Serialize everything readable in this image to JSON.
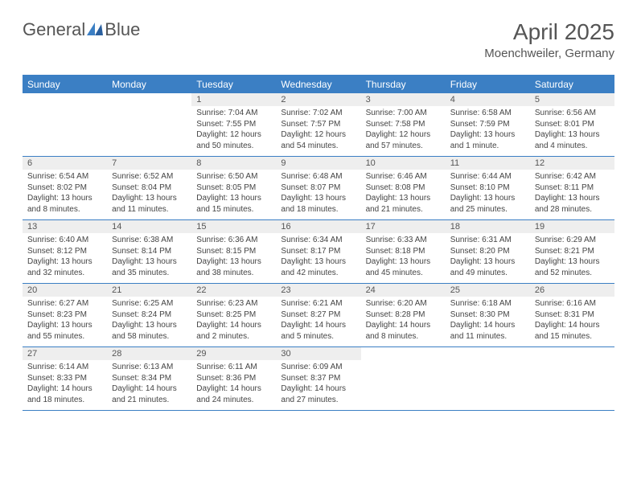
{
  "logo": {
    "text1": "General",
    "text2": "Blue"
  },
  "title": "April 2025",
  "subtitle": "Moenchweiler, Germany",
  "colors": {
    "header_bg": "#3b7fc4",
    "header_text": "#ffffff",
    "daynum_bg": "#eeeeee",
    "border": "#3b7fc4",
    "text": "#444444",
    "title": "#555555"
  },
  "day_names": [
    "Sunday",
    "Monday",
    "Tuesday",
    "Wednesday",
    "Thursday",
    "Friday",
    "Saturday"
  ],
  "weeks": [
    [
      null,
      null,
      {
        "n": "1",
        "sunrise": "7:04 AM",
        "sunset": "7:55 PM",
        "daylight": "12 hours and 50 minutes."
      },
      {
        "n": "2",
        "sunrise": "7:02 AM",
        "sunset": "7:57 PM",
        "daylight": "12 hours and 54 minutes."
      },
      {
        "n": "3",
        "sunrise": "7:00 AM",
        "sunset": "7:58 PM",
        "daylight": "12 hours and 57 minutes."
      },
      {
        "n": "4",
        "sunrise": "6:58 AM",
        "sunset": "7:59 PM",
        "daylight": "13 hours and 1 minute."
      },
      {
        "n": "5",
        "sunrise": "6:56 AM",
        "sunset": "8:01 PM",
        "daylight": "13 hours and 4 minutes."
      }
    ],
    [
      {
        "n": "6",
        "sunrise": "6:54 AM",
        "sunset": "8:02 PM",
        "daylight": "13 hours and 8 minutes."
      },
      {
        "n": "7",
        "sunrise": "6:52 AM",
        "sunset": "8:04 PM",
        "daylight": "13 hours and 11 minutes."
      },
      {
        "n": "8",
        "sunrise": "6:50 AM",
        "sunset": "8:05 PM",
        "daylight": "13 hours and 15 minutes."
      },
      {
        "n": "9",
        "sunrise": "6:48 AM",
        "sunset": "8:07 PM",
        "daylight": "13 hours and 18 minutes."
      },
      {
        "n": "10",
        "sunrise": "6:46 AM",
        "sunset": "8:08 PM",
        "daylight": "13 hours and 21 minutes."
      },
      {
        "n": "11",
        "sunrise": "6:44 AM",
        "sunset": "8:10 PM",
        "daylight": "13 hours and 25 minutes."
      },
      {
        "n": "12",
        "sunrise": "6:42 AM",
        "sunset": "8:11 PM",
        "daylight": "13 hours and 28 minutes."
      }
    ],
    [
      {
        "n": "13",
        "sunrise": "6:40 AM",
        "sunset": "8:12 PM",
        "daylight": "13 hours and 32 minutes."
      },
      {
        "n": "14",
        "sunrise": "6:38 AM",
        "sunset": "8:14 PM",
        "daylight": "13 hours and 35 minutes."
      },
      {
        "n": "15",
        "sunrise": "6:36 AM",
        "sunset": "8:15 PM",
        "daylight": "13 hours and 38 minutes."
      },
      {
        "n": "16",
        "sunrise": "6:34 AM",
        "sunset": "8:17 PM",
        "daylight": "13 hours and 42 minutes."
      },
      {
        "n": "17",
        "sunrise": "6:33 AM",
        "sunset": "8:18 PM",
        "daylight": "13 hours and 45 minutes."
      },
      {
        "n": "18",
        "sunrise": "6:31 AM",
        "sunset": "8:20 PM",
        "daylight": "13 hours and 49 minutes."
      },
      {
        "n": "19",
        "sunrise": "6:29 AM",
        "sunset": "8:21 PM",
        "daylight": "13 hours and 52 minutes."
      }
    ],
    [
      {
        "n": "20",
        "sunrise": "6:27 AM",
        "sunset": "8:23 PM",
        "daylight": "13 hours and 55 minutes."
      },
      {
        "n": "21",
        "sunrise": "6:25 AM",
        "sunset": "8:24 PM",
        "daylight": "13 hours and 58 minutes."
      },
      {
        "n": "22",
        "sunrise": "6:23 AM",
        "sunset": "8:25 PM",
        "daylight": "14 hours and 2 minutes."
      },
      {
        "n": "23",
        "sunrise": "6:21 AM",
        "sunset": "8:27 PM",
        "daylight": "14 hours and 5 minutes."
      },
      {
        "n": "24",
        "sunrise": "6:20 AM",
        "sunset": "8:28 PM",
        "daylight": "14 hours and 8 minutes."
      },
      {
        "n": "25",
        "sunrise": "6:18 AM",
        "sunset": "8:30 PM",
        "daylight": "14 hours and 11 minutes."
      },
      {
        "n": "26",
        "sunrise": "6:16 AM",
        "sunset": "8:31 PM",
        "daylight": "14 hours and 15 minutes."
      }
    ],
    [
      {
        "n": "27",
        "sunrise": "6:14 AM",
        "sunset": "8:33 PM",
        "daylight": "14 hours and 18 minutes."
      },
      {
        "n": "28",
        "sunrise": "6:13 AM",
        "sunset": "8:34 PM",
        "daylight": "14 hours and 21 minutes."
      },
      {
        "n": "29",
        "sunrise": "6:11 AM",
        "sunset": "8:36 PM",
        "daylight": "14 hours and 24 minutes."
      },
      {
        "n": "30",
        "sunrise": "6:09 AM",
        "sunset": "8:37 PM",
        "daylight": "14 hours and 27 minutes."
      },
      null,
      null,
      null
    ]
  ],
  "labels": {
    "sunrise": "Sunrise:",
    "sunset": "Sunset:",
    "daylight": "Daylight:"
  }
}
